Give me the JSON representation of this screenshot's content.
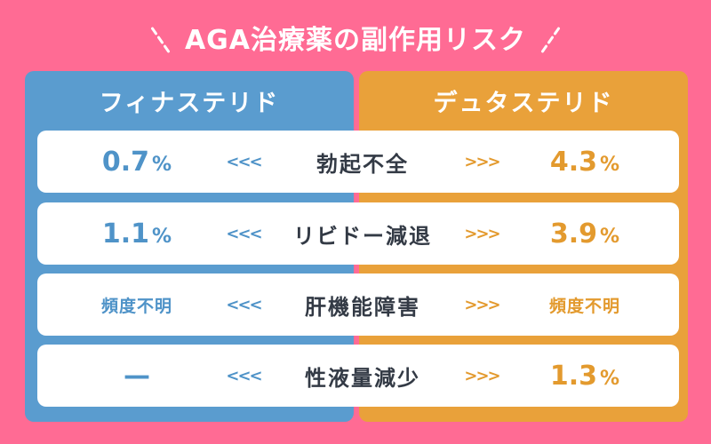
{
  "title": "AGA治療薬の副作用リスク",
  "colors": {
    "background": "#ff6b94",
    "finasteride": "#5a9ccf",
    "dutasteride": "#e9a13a",
    "text_dark": "#333a45"
  },
  "columns": {
    "left": "フィナステリド",
    "right": "デュタステリド"
  },
  "arrows": {
    "left": "<<<",
    "right": ">>>"
  },
  "rows": [
    {
      "label": "勃起不全",
      "left": "0.7",
      "left_unit": "%",
      "right": "4.3",
      "right_unit": "%"
    },
    {
      "label": "リビドー減退",
      "left": "1.1",
      "left_unit": "%",
      "right": "3.9",
      "right_unit": "%"
    },
    {
      "label": "肝機能障害",
      "left": "頻度不明",
      "left_unit": "",
      "right": "頻度不明",
      "right_unit": ""
    },
    {
      "label": "性液量減少",
      "left": "—",
      "left_unit": "",
      "right": "1.3",
      "right_unit": "%"
    }
  ]
}
